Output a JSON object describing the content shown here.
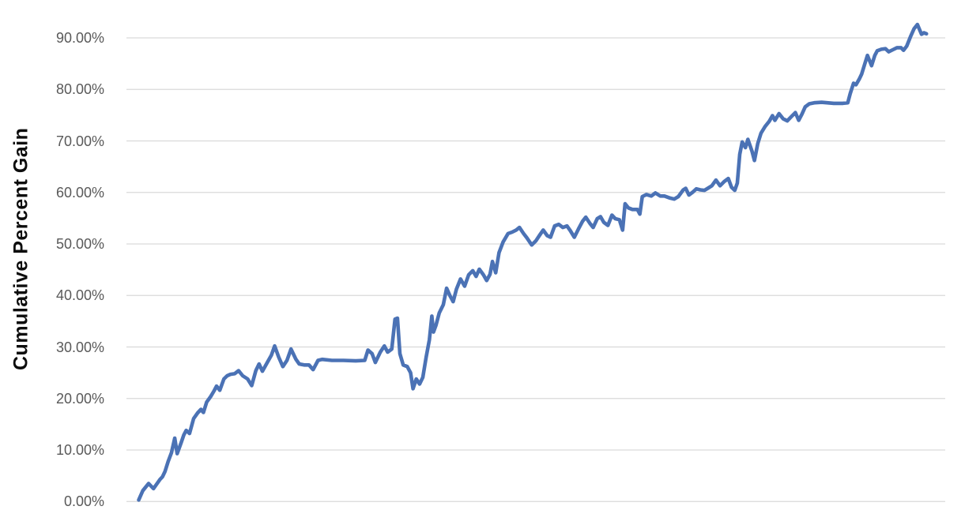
{
  "chart_data": {
    "type": "line",
    "title": "",
    "xlabel": "",
    "ylabel": "Cumulative Percent Gain",
    "ylim": [
      0,
      100
    ],
    "grid": true,
    "legend_position": "none",
    "x_axis_labels_visible": false,
    "colors": {
      "line": "#4B72B5",
      "gridline": "#D9D9D9",
      "tick_text": "#595959",
      "axis_title_text": "#0d0d0d",
      "background": "#FFFFFF"
    },
    "y_ticks": [
      {
        "value": 0,
        "label": "0.00%"
      },
      {
        "value": 10,
        "label": "10.00%"
      },
      {
        "value": 20,
        "label": "20.00%"
      },
      {
        "value": 30,
        "label": "30.00%"
      },
      {
        "value": 40,
        "label": "40.00%"
      },
      {
        "value": 50,
        "label": "50.00%"
      },
      {
        "value": 60,
        "label": "60.00%"
      },
      {
        "value": 70,
        "label": "70.00%"
      },
      {
        "value": 80,
        "label": "80.00%"
      },
      {
        "value": 90,
        "label": "90.00%"
      }
    ],
    "series": [
      {
        "name": "Cumulative Percent Gain",
        "x_unit": "percent_of_axis",
        "y_unit": "percent_gain",
        "points": [
          [
            1.5,
            0.3
          ],
          [
            2.0,
            2.1
          ],
          [
            2.7,
            3.5
          ],
          [
            3.3,
            2.5
          ],
          [
            4.1,
            4.3
          ],
          [
            4.4,
            4.8
          ],
          [
            4.7,
            5.8
          ],
          [
            5.1,
            7.8
          ],
          [
            5.5,
            9.5
          ],
          [
            5.9,
            12.3
          ],
          [
            6.2,
            9.3
          ],
          [
            6.7,
            11.5
          ],
          [
            7.0,
            12.9
          ],
          [
            7.3,
            13.8
          ],
          [
            7.7,
            13.2
          ],
          [
            8.2,
            16.1
          ],
          [
            8.7,
            17.2
          ],
          [
            9.1,
            17.9
          ],
          [
            9.4,
            17.3
          ],
          [
            9.8,
            19.3
          ],
          [
            10.3,
            20.4
          ],
          [
            10.7,
            21.5
          ],
          [
            11.0,
            22.4
          ],
          [
            11.4,
            21.6
          ],
          [
            11.9,
            23.8
          ],
          [
            12.3,
            24.4
          ],
          [
            12.7,
            24.7
          ],
          [
            13.2,
            24.8
          ],
          [
            13.7,
            25.4
          ],
          [
            14.2,
            24.4
          ],
          [
            14.8,
            23.8
          ],
          [
            15.3,
            22.5
          ],
          [
            15.8,
            25.4
          ],
          [
            16.2,
            26.7
          ],
          [
            16.6,
            25.3
          ],
          [
            17.2,
            27.0
          ],
          [
            17.7,
            28.4
          ],
          [
            18.1,
            30.2
          ],
          [
            18.6,
            28.0
          ],
          [
            19.1,
            26.2
          ],
          [
            19.6,
            27.4
          ],
          [
            20.1,
            29.6
          ],
          [
            20.7,
            27.6
          ],
          [
            21.1,
            26.7
          ],
          [
            21.7,
            26.5
          ],
          [
            22.3,
            26.5
          ],
          [
            22.8,
            25.6
          ],
          [
            23.4,
            27.4
          ],
          [
            23.9,
            27.6
          ],
          [
            25.1,
            27.4
          ],
          [
            26.5,
            27.4
          ],
          [
            28.0,
            27.3
          ],
          [
            29.1,
            27.4
          ],
          [
            29.5,
            29.4
          ],
          [
            30.0,
            28.7
          ],
          [
            30.4,
            27.0
          ],
          [
            31.0,
            29.0
          ],
          [
            31.5,
            30.2
          ],
          [
            31.9,
            29.0
          ],
          [
            32.4,
            29.6
          ],
          [
            32.8,
            35.4
          ],
          [
            33.1,
            35.6
          ],
          [
            33.4,
            28.7
          ],
          [
            33.8,
            26.5
          ],
          [
            34.3,
            26.2
          ],
          [
            34.7,
            25.0
          ],
          [
            35.0,
            21.9
          ],
          [
            35.4,
            23.8
          ],
          [
            35.8,
            22.8
          ],
          [
            36.2,
            24.1
          ],
          [
            36.6,
            28.0
          ],
          [
            37.0,
            31.4
          ],
          [
            37.3,
            36.0
          ],
          [
            37.5,
            32.9
          ],
          [
            37.8,
            34.2
          ],
          [
            38.2,
            36.6
          ],
          [
            38.7,
            38.2
          ],
          [
            39.1,
            41.4
          ],
          [
            39.5,
            40.0
          ],
          [
            39.9,
            38.8
          ],
          [
            40.3,
            41.2
          ],
          [
            40.8,
            43.2
          ],
          [
            41.3,
            41.8
          ],
          [
            41.8,
            44.0
          ],
          [
            42.3,
            44.8
          ],
          [
            42.7,
            43.7
          ],
          [
            43.1,
            45.1
          ],
          [
            43.6,
            44.0
          ],
          [
            44.0,
            42.9
          ],
          [
            44.4,
            44.1
          ],
          [
            44.7,
            46.6
          ],
          [
            45.1,
            44.4
          ],
          [
            45.5,
            48.3
          ],
          [
            46.0,
            50.4
          ],
          [
            46.6,
            52.0
          ],
          [
            47.1,
            52.3
          ],
          [
            47.6,
            52.7
          ],
          [
            48.0,
            53.2
          ],
          [
            48.5,
            52.0
          ],
          [
            48.9,
            51.2
          ],
          [
            49.5,
            49.8
          ],
          [
            50.0,
            50.6
          ],
          [
            50.5,
            51.8
          ],
          [
            50.9,
            52.7
          ],
          [
            51.4,
            51.6
          ],
          [
            51.8,
            51.3
          ],
          [
            52.3,
            53.5
          ],
          [
            52.8,
            53.8
          ],
          [
            53.3,
            53.2
          ],
          [
            53.8,
            53.5
          ],
          [
            54.2,
            52.6
          ],
          [
            54.7,
            51.3
          ],
          [
            55.2,
            52.9
          ],
          [
            55.7,
            54.4
          ],
          [
            56.1,
            55.2
          ],
          [
            56.6,
            54.0
          ],
          [
            57.0,
            53.2
          ],
          [
            57.5,
            54.9
          ],
          [
            57.9,
            55.3
          ],
          [
            58.3,
            54.2
          ],
          [
            58.8,
            53.6
          ],
          [
            59.3,
            55.6
          ],
          [
            59.7,
            54.9
          ],
          [
            60.2,
            54.7
          ],
          [
            60.6,
            52.7
          ],
          [
            60.9,
            57.8
          ],
          [
            61.3,
            57.0
          ],
          [
            61.8,
            56.7
          ],
          [
            62.4,
            56.7
          ],
          [
            62.7,
            55.8
          ],
          [
            63.0,
            59.2
          ],
          [
            63.5,
            59.6
          ],
          [
            64.1,
            59.3
          ],
          [
            64.6,
            59.9
          ],
          [
            65.2,
            59.3
          ],
          [
            65.7,
            59.3
          ],
          [
            66.4,
            58.9
          ],
          [
            66.9,
            58.7
          ],
          [
            67.4,
            59.2
          ],
          [
            68.0,
            60.5
          ],
          [
            68.3,
            60.8
          ],
          [
            68.7,
            59.5
          ],
          [
            69.2,
            60.1
          ],
          [
            69.6,
            60.7
          ],
          [
            70.1,
            60.5
          ],
          [
            70.6,
            60.4
          ],
          [
            71.0,
            60.8
          ],
          [
            71.5,
            61.3
          ],
          [
            72.0,
            62.4
          ],
          [
            72.5,
            61.3
          ],
          [
            73.0,
            62.1
          ],
          [
            73.5,
            62.7
          ],
          [
            73.9,
            61.0
          ],
          [
            74.3,
            60.4
          ],
          [
            74.6,
            61.8
          ],
          [
            74.9,
            67.4
          ],
          [
            75.2,
            69.8
          ],
          [
            75.6,
            68.7
          ],
          [
            75.9,
            70.3
          ],
          [
            76.4,
            68.0
          ],
          [
            76.7,
            66.2
          ],
          [
            77.1,
            69.5
          ],
          [
            77.5,
            71.5
          ],
          [
            78.0,
            72.8
          ],
          [
            78.5,
            73.8
          ],
          [
            78.9,
            74.9
          ],
          [
            79.2,
            74.0
          ],
          [
            79.7,
            75.3
          ],
          [
            80.2,
            74.3
          ],
          [
            80.7,
            73.9
          ],
          [
            81.2,
            74.7
          ],
          [
            81.7,
            75.5
          ],
          [
            82.1,
            74.0
          ],
          [
            82.5,
            75.2
          ],
          [
            82.9,
            76.6
          ],
          [
            83.4,
            77.2
          ],
          [
            84.0,
            77.4
          ],
          [
            84.9,
            77.5
          ],
          [
            86.4,
            77.3
          ],
          [
            87.5,
            77.3
          ],
          [
            88.1,
            77.4
          ],
          [
            88.4,
            79.2
          ],
          [
            88.8,
            81.2
          ],
          [
            89.1,
            80.9
          ],
          [
            89.5,
            82.0
          ],
          [
            89.8,
            83.0
          ],
          [
            90.2,
            85.1
          ],
          [
            90.5,
            86.6
          ],
          [
            91.0,
            84.6
          ],
          [
            91.4,
            86.6
          ],
          [
            91.7,
            87.5
          ],
          [
            92.2,
            87.8
          ],
          [
            92.7,
            87.9
          ],
          [
            93.1,
            87.3
          ],
          [
            93.6,
            87.7
          ],
          [
            94.1,
            88.1
          ],
          [
            94.6,
            88.1
          ],
          [
            94.9,
            87.6
          ],
          [
            95.3,
            88.4
          ],
          [
            95.8,
            90.4
          ],
          [
            96.2,
            91.8
          ],
          [
            96.6,
            92.6
          ],
          [
            97.1,
            90.7
          ],
          [
            97.4,
            91.0
          ],
          [
            97.7,
            90.8
          ]
        ]
      }
    ]
  }
}
